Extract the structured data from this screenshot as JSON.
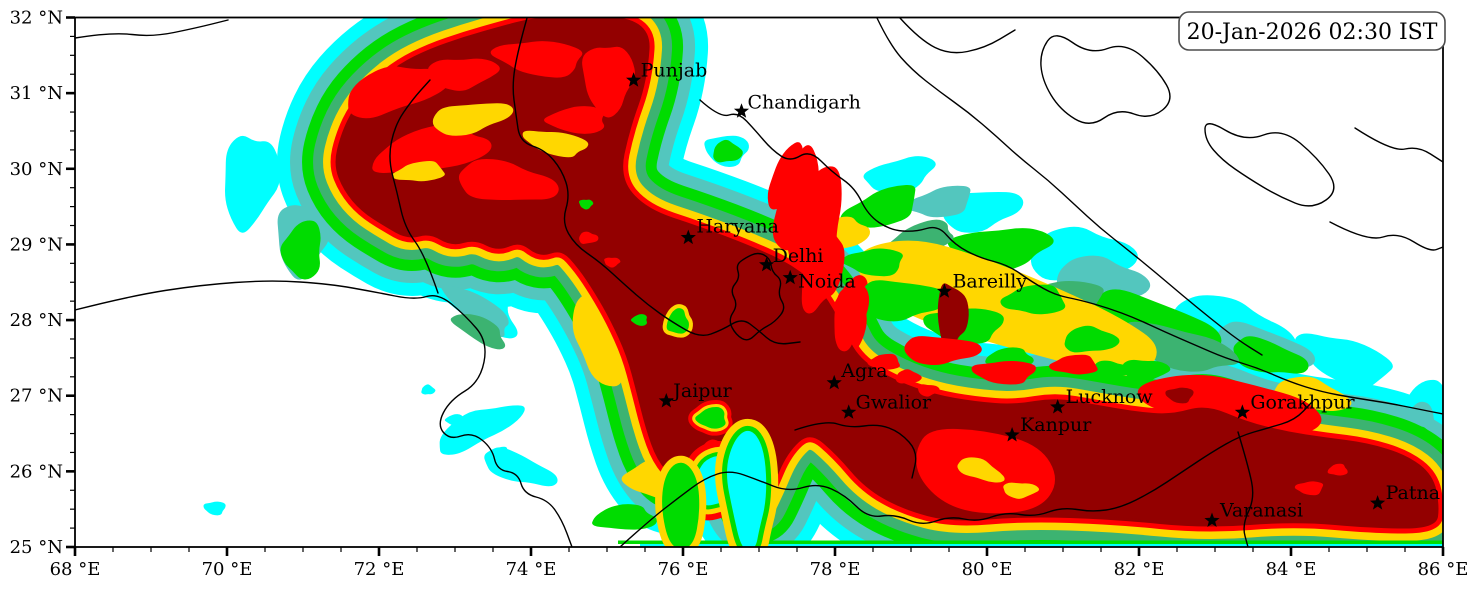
{
  "timestamp": "20-Jan-2026 02:30 IST",
  "map": {
    "extent": {
      "lon_min": 68,
      "lon_max": 86,
      "lat_min": 25,
      "lat_max": 32
    },
    "palette": {
      "background": "#ffffff",
      "boundary": "#000000",
      "cyan": "#00ffff",
      "aqua": "#53c6be",
      "green": "#00dc00",
      "seagreen": "#3cb371",
      "gold": "#ffd700",
      "red": "#ff0000",
      "darkred": "#930000"
    },
    "axes": {
      "x_ticks": [
        {
          "label": "68 °E",
          "value": 68
        },
        {
          "label": "70 °E",
          "value": 70
        },
        {
          "label": "72 °E",
          "value": 72
        },
        {
          "label": "74 °E",
          "value": 74
        },
        {
          "label": "76 °E",
          "value": 76
        },
        {
          "label": "78 °E",
          "value": 78
        },
        {
          "label": "80 °E",
          "value": 80
        },
        {
          "label": "82 °E",
          "value": 82
        },
        {
          "label": "84 °E",
          "value": 84
        },
        {
          "label": "86 °E",
          "value": 86
        }
      ],
      "y_ticks": [
        {
          "label": "32 °N",
          "value": 32
        },
        {
          "label": "31 °N",
          "value": 31
        },
        {
          "label": "30 °N",
          "value": 30
        },
        {
          "label": "29 °N",
          "value": 29
        },
        {
          "label": "28 °N",
          "value": 28
        },
        {
          "label": "27 °N",
          "value": 27
        },
        {
          "label": "26 °N",
          "value": 26
        },
        {
          "label": "25 °N",
          "value": 25
        }
      ]
    },
    "cities": [
      {
        "name": "Punjab",
        "lon": 75.35,
        "lat": 31.17
      },
      {
        "name": "Chandigarh",
        "lon": 76.77,
        "lat": 30.76
      },
      {
        "name": "Haryana",
        "lon": 76.07,
        "lat": 29.09
      },
      {
        "name": "Delhi",
        "lon": 77.1,
        "lat": 28.73
      },
      {
        "name": "Noida",
        "lon": 77.41,
        "lat": 28.56
      },
      {
        "name": "Bareilly",
        "lon": 79.44,
        "lat": 28.38
      },
      {
        "name": "Agra",
        "lon": 77.99,
        "lat": 27.17
      },
      {
        "name": "Jaipur",
        "lon": 75.78,
        "lat": 26.93
      },
      {
        "name": "Gwalior",
        "lon": 78.18,
        "lat": 26.78
      },
      {
        "name": "Lucknow",
        "lon": 80.93,
        "lat": 26.85
      },
      {
        "name": "Kanpur",
        "lon": 80.33,
        "lat": 26.48
      },
      {
        "name": "Gorakhpur",
        "lon": 83.36,
        "lat": 26.78
      },
      {
        "name": "Varanasi",
        "lon": 82.96,
        "lat": 25.35
      },
      {
        "name": "Patna",
        "lon": 85.14,
        "lat": 25.58
      }
    ]
  }
}
